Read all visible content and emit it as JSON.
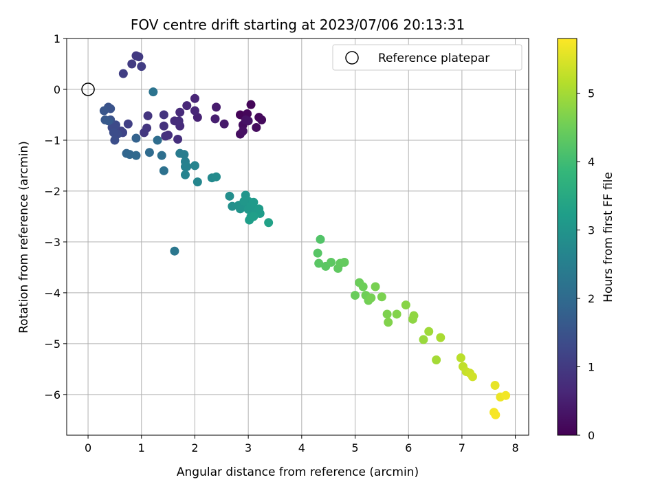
{
  "chart_data": {
    "type": "scatter",
    "title": "FOV centre drift starting at 2023/07/06 20:13:31",
    "xlabel": "Angular distance from reference (arcmin)",
    "ylabel": "Rotation from reference (arcmin)",
    "xlim": [
      -0.4,
      8.25
    ],
    "ylim": [
      -6.8,
      1.0
    ],
    "xticks": [
      0,
      1,
      2,
      3,
      4,
      5,
      6,
      7,
      8
    ],
    "yticks": [
      1,
      0,
      -1,
      -2,
      -3,
      -4,
      -5,
      -6
    ],
    "grid": true,
    "legend": {
      "position": "top-right",
      "entries": [
        "Reference platepar"
      ]
    },
    "reference_point": {
      "x": 0,
      "y": 0
    },
    "colorbar": {
      "label": "Hours from first FF file",
      "range": [
        0,
        5.8
      ],
      "ticks": [
        0,
        1,
        2,
        3,
        4,
        5
      ],
      "colormap": "viridis",
      "colormap_stops": [
        "#440154",
        "#482878",
        "#3e4989",
        "#31688e",
        "#26828e",
        "#1f9e89",
        "#35b779",
        "#6ece58",
        "#b5de2b",
        "#fde725"
      ]
    },
    "points": [
      {
        "x": 2.85,
        "y": -0.5,
        "t": 0.05
      },
      {
        "x": 3.05,
        "y": -0.3,
        "t": 0.08
      },
      {
        "x": 2.98,
        "y": -0.48,
        "t": 0.1
      },
      {
        "x": 3.2,
        "y": -0.55,
        "t": 0.12
      },
      {
        "x": 3.25,
        "y": -0.6,
        "t": 0.15
      },
      {
        "x": 3.15,
        "y": -0.75,
        "t": 0.18
      },
      {
        "x": 2.9,
        "y": -0.7,
        "t": 0.2
      },
      {
        "x": 2.85,
        "y": -0.88,
        "t": 0.22
      },
      {
        "x": 2.9,
        "y": -0.82,
        "t": 0.25
      },
      {
        "x": 2.95,
        "y": -0.6,
        "t": 0.28
      },
      {
        "x": 3.0,
        "y": -0.62,
        "t": 0.3
      },
      {
        "x": 2.55,
        "y": -0.68,
        "t": 0.4
      },
      {
        "x": 2.4,
        "y": -0.35,
        "t": 0.45
      },
      {
        "x": 2.38,
        "y": -0.58,
        "t": 0.5
      },
      {
        "x": 2.05,
        "y": -0.55,
        "t": 0.55
      },
      {
        "x": 2.0,
        "y": -0.18,
        "t": 0.6
      },
      {
        "x": 2.0,
        "y": -0.42,
        "t": 0.62
      },
      {
        "x": 1.85,
        "y": -0.32,
        "t": 0.65
      },
      {
        "x": 1.72,
        "y": -0.45,
        "t": 0.7
      },
      {
        "x": 1.72,
        "y": -0.72,
        "t": 0.72
      },
      {
        "x": 1.62,
        "y": -0.62,
        "t": 0.75
      },
      {
        "x": 1.7,
        "y": -0.62,
        "t": 0.76
      },
      {
        "x": 1.68,
        "y": -0.98,
        "t": 0.78
      },
      {
        "x": 1.5,
        "y": -0.9,
        "t": 0.8
      },
      {
        "x": 1.45,
        "y": -0.92,
        "t": 0.82
      },
      {
        "x": 1.42,
        "y": -0.72,
        "t": 0.85
      },
      {
        "x": 1.42,
        "y": -0.5,
        "t": 0.88
      },
      {
        "x": 1.12,
        "y": -0.52,
        "t": 0.9
      },
      {
        "x": 1.1,
        "y": -0.76,
        "t": 0.92
      },
      {
        "x": 1.05,
        "y": -0.85,
        "t": 0.95
      },
      {
        "x": 0.9,
        "y": 0.66,
        "t": 0.98
      },
      {
        "x": 0.95,
        "y": 0.64,
        "t": 1.0
      },
      {
        "x": 0.82,
        "y": 0.5,
        "t": 1.02
      },
      {
        "x": 1.0,
        "y": 0.45,
        "t": 1.05
      },
      {
        "x": 0.66,
        "y": 0.31,
        "t": 1.08
      },
      {
        "x": 0.75,
        "y": -0.68,
        "t": 1.12
      },
      {
        "x": 0.62,
        "y": -0.82,
        "t": 1.18
      },
      {
        "x": 0.65,
        "y": -0.85,
        "t": 1.2
      },
      {
        "x": 0.5,
        "y": -0.78,
        "t": 1.25
      },
      {
        "x": 0.45,
        "y": -0.75,
        "t": 1.3
      },
      {
        "x": 0.52,
        "y": -0.7,
        "t": 1.32
      },
      {
        "x": 0.55,
        "y": -0.88,
        "t": 1.35
      },
      {
        "x": 0.48,
        "y": -0.85,
        "t": 1.38
      },
      {
        "x": 0.5,
        "y": -1.0,
        "t": 1.4
      },
      {
        "x": 0.42,
        "y": -0.6,
        "t": 1.45
      },
      {
        "x": 0.38,
        "y": -0.35,
        "t": 1.48
      },
      {
        "x": 0.42,
        "y": -0.38,
        "t": 1.5
      },
      {
        "x": 0.3,
        "y": -0.42,
        "t": 1.55
      },
      {
        "x": 0.32,
        "y": -0.6,
        "t": 1.6
      },
      {
        "x": 0.38,
        "y": -0.62,
        "t": 1.62
      },
      {
        "x": 0.9,
        "y": -0.96,
        "t": 1.8
      },
      {
        "x": 0.72,
        "y": -1.26,
        "t": 1.9
      },
      {
        "x": 0.78,
        "y": -1.28,
        "t": 1.92
      },
      {
        "x": 0.9,
        "y": -1.3,
        "t": 1.95
      },
      {
        "x": 1.15,
        "y": -1.24,
        "t": 2.0
      },
      {
        "x": 1.3,
        "y": -1.0,
        "t": 2.05
      },
      {
        "x": 1.38,
        "y": -1.3,
        "t": 2.1
      },
      {
        "x": 1.42,
        "y": -1.6,
        "t": 2.15
      },
      {
        "x": 1.22,
        "y": -0.05,
        "t": 2.2
      },
      {
        "x": 1.62,
        "y": -3.18,
        "t": 2.3
      },
      {
        "x": 1.72,
        "y": -1.26,
        "t": 2.4
      },
      {
        "x": 1.8,
        "y": -1.28,
        "t": 2.45
      },
      {
        "x": 1.82,
        "y": -1.42,
        "t": 2.5
      },
      {
        "x": 1.82,
        "y": -1.52,
        "t": 2.52
      },
      {
        "x": 1.85,
        "y": -1.52,
        "t": 2.55
      },
      {
        "x": 1.82,
        "y": -1.68,
        "t": 2.58
      },
      {
        "x": 2.0,
        "y": -1.5,
        "t": 2.62
      },
      {
        "x": 2.05,
        "y": -1.82,
        "t": 2.68
      },
      {
        "x": 2.32,
        "y": -1.74,
        "t": 2.75
      },
      {
        "x": 2.4,
        "y": -1.72,
        "t": 2.78
      },
      {
        "x": 2.65,
        "y": -2.1,
        "t": 2.85
      },
      {
        "x": 2.7,
        "y": -2.3,
        "t": 2.9
      },
      {
        "x": 2.82,
        "y": -2.28,
        "t": 2.95
      },
      {
        "x": 2.85,
        "y": -2.35,
        "t": 2.98
      },
      {
        "x": 2.9,
        "y": -2.3,
        "t": 3.0
      },
      {
        "x": 2.95,
        "y": -2.08,
        "t": 3.02
      },
      {
        "x": 3.0,
        "y": -2.2,
        "t": 3.05
      },
      {
        "x": 2.92,
        "y": -2.2,
        "t": 3.06
      },
      {
        "x": 3.0,
        "y": -2.36,
        "t": 3.08
      },
      {
        "x": 3.05,
        "y": -2.3,
        "t": 3.1
      },
      {
        "x": 3.1,
        "y": -2.22,
        "t": 3.12
      },
      {
        "x": 3.15,
        "y": -2.42,
        "t": 3.14
      },
      {
        "x": 3.2,
        "y": -2.35,
        "t": 3.16
      },
      {
        "x": 3.22,
        "y": -2.44,
        "t": 3.18
      },
      {
        "x": 3.05,
        "y": -2.5,
        "t": 3.2
      },
      {
        "x": 3.02,
        "y": -2.57,
        "t": 3.22
      },
      {
        "x": 3.1,
        "y": -2.5,
        "t": 3.24
      },
      {
        "x": 3.38,
        "y": -2.62,
        "t": 3.3
      },
      {
        "x": 4.35,
        "y": -2.95,
        "t": 4.2
      },
      {
        "x": 4.3,
        "y": -3.22,
        "t": 4.25
      },
      {
        "x": 4.32,
        "y": -3.42,
        "t": 4.28
      },
      {
        "x": 4.45,
        "y": -3.48,
        "t": 4.3
      },
      {
        "x": 4.55,
        "y": -3.4,
        "t": 4.32
      },
      {
        "x": 4.68,
        "y": -3.52,
        "t": 4.35
      },
      {
        "x": 4.72,
        "y": -3.42,
        "t": 4.38
      },
      {
        "x": 4.8,
        "y": -3.4,
        "t": 4.4
      },
      {
        "x": 5.0,
        "y": -4.05,
        "t": 4.45
      },
      {
        "x": 5.08,
        "y": -3.8,
        "t": 4.48
      },
      {
        "x": 5.15,
        "y": -3.88,
        "t": 4.5
      },
      {
        "x": 5.2,
        "y": -4.05,
        "t": 4.52
      },
      {
        "x": 5.25,
        "y": -4.15,
        "t": 4.55
      },
      {
        "x": 5.3,
        "y": -4.1,
        "t": 4.58
      },
      {
        "x": 5.38,
        "y": -3.88,
        "t": 4.6
      },
      {
        "x": 5.5,
        "y": -4.08,
        "t": 4.62
      },
      {
        "x": 5.6,
        "y": -4.42,
        "t": 4.65
      },
      {
        "x": 5.62,
        "y": -4.58,
        "t": 4.68
      },
      {
        "x": 5.78,
        "y": -4.42,
        "t": 4.7
      },
      {
        "x": 5.95,
        "y": -4.24,
        "t": 4.75
      },
      {
        "x": 6.08,
        "y": -4.52,
        "t": 4.8
      },
      {
        "x": 6.1,
        "y": -4.45,
        "t": 4.82
      },
      {
        "x": 6.28,
        "y": -4.92,
        "t": 4.9
      },
      {
        "x": 6.38,
        "y": -4.76,
        "t": 4.95
      },
      {
        "x": 6.52,
        "y": -5.32,
        "t": 5.0
      },
      {
        "x": 6.6,
        "y": -4.88,
        "t": 5.05
      },
      {
        "x": 6.98,
        "y": -5.28,
        "t": 5.2
      },
      {
        "x": 7.02,
        "y": -5.45,
        "t": 5.25
      },
      {
        "x": 7.08,
        "y": -5.55,
        "t": 5.3
      },
      {
        "x": 7.15,
        "y": -5.58,
        "t": 5.35
      },
      {
        "x": 7.2,
        "y": -5.65,
        "t": 5.4
      },
      {
        "x": 7.62,
        "y": -5.82,
        "t": 5.6
      },
      {
        "x": 7.72,
        "y": -6.05,
        "t": 5.65
      },
      {
        "x": 7.82,
        "y": -6.02,
        "t": 5.7
      },
      {
        "x": 7.6,
        "y": -6.35,
        "t": 5.72
      },
      {
        "x": 7.63,
        "y": -6.4,
        "t": 5.75
      }
    ]
  }
}
